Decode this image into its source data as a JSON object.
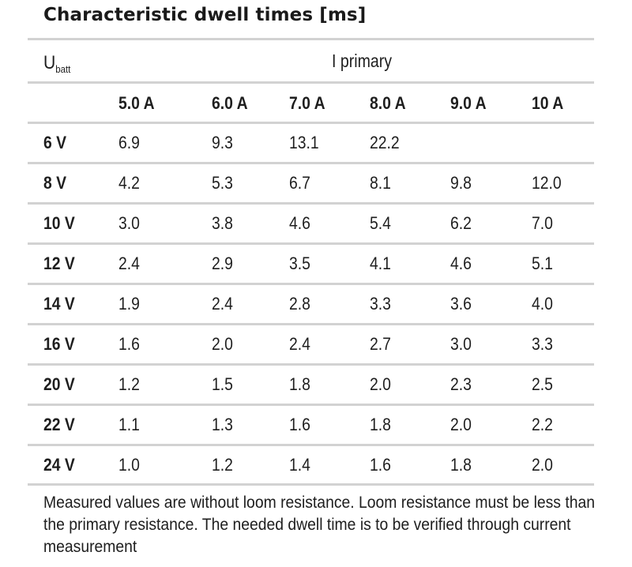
{
  "title": "Characteristic dwell times [ms]",
  "header": {
    "voltage_label_main": "U",
    "voltage_label_sub": "batt",
    "current_group_label": "I primary"
  },
  "columns": [
    "5.0 A",
    "6.0 A",
    "7.0 A",
    "8.0 A",
    "9.0 A",
    "10 A"
  ],
  "rows": [
    {
      "label": "6 V",
      "values": [
        "6.9",
        "9.3",
        "13.1",
        "22.2",
        "",
        ""
      ]
    },
    {
      "label": "8 V",
      "values": [
        "4.2",
        "5.3",
        "6.7",
        "8.1",
        "9.8",
        "12.0"
      ]
    },
    {
      "label": "10 V",
      "values": [
        "3.0",
        "3.8",
        "4.6",
        "5.4",
        "6.2",
        "7.0"
      ]
    },
    {
      "label": "12 V",
      "values": [
        "2.4",
        "2.9",
        "3.5",
        "4.1",
        "4.6",
        "5.1"
      ]
    },
    {
      "label": "14 V",
      "values": [
        "1.9",
        "2.4",
        "2.8",
        "3.3",
        "3.6",
        "4.0"
      ]
    },
    {
      "label": "16 V",
      "values": [
        "1.6",
        "2.0",
        "2.4",
        "2.7",
        "3.0",
        "3.3"
      ]
    },
    {
      "label": "20 V",
      "values": [
        "1.2",
        "1.5",
        "1.8",
        "2.0",
        "2.3",
        "2.5"
      ]
    },
    {
      "label": "22 V",
      "values": [
        "1.1",
        "1.3",
        "1.6",
        "1.8",
        "2.0",
        "2.2"
      ]
    },
    {
      "label": "24 V",
      "values": [
        "1.0",
        "1.2",
        "1.4",
        "1.6",
        "1.8",
        "2.0"
      ]
    }
  ],
  "note": "Measured values are without loom resistance. Loom resistance must be less than the primary resistance. The needed dwell time is to be verified through current measurement",
  "colors": {
    "rule": "#d2d2d2",
    "text": "#1e1e1e"
  }
}
